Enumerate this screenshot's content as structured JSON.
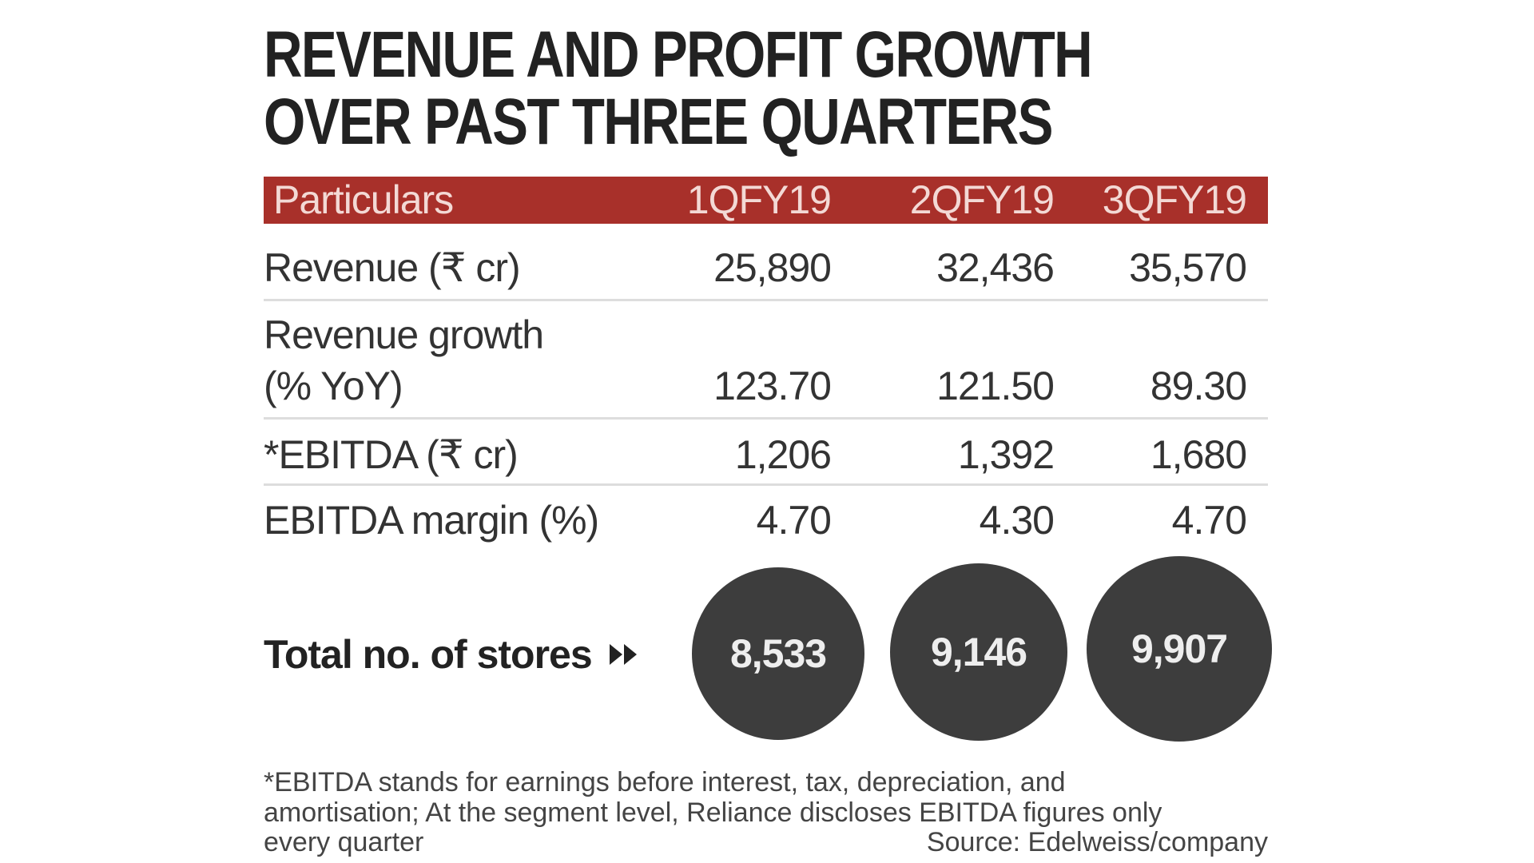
{
  "title": {
    "line1": "REVENUE AND PROFIT GROWTH",
    "line2": "OVER PAST THREE QUARTERS"
  },
  "colors": {
    "header_bg": "#a8302a",
    "circle_bg": "#3d3d3d"
  },
  "table": {
    "headers": [
      "Particulars",
      "1QFY19",
      "2QFY19",
      "3QFY19"
    ],
    "rows": [
      {
        "label": "Revenue (₹ cr)",
        "values": [
          "25,890",
          "32,436",
          "35,570"
        ]
      },
      {
        "label_line1": "Revenue growth",
        "label_line2": "(% YoY)",
        "values": [
          "123.70",
          "121.50",
          "89.30"
        ]
      },
      {
        "label": "*EBITDA (₹ cr)",
        "values": [
          "1,206",
          "1,392",
          "1,680"
        ]
      },
      {
        "label": "EBITDA margin (%)",
        "values": [
          "4.70",
          "4.30",
          "4.70"
        ]
      }
    ]
  },
  "stores": {
    "label": "Total no. of stores",
    "icon": "double-arrow-right-icon",
    "values": [
      "8,533",
      "9,146",
      "9,907"
    ]
  },
  "footnote": {
    "line1": "*EBITDA stands for earnings before interest, tax, depreciation, and",
    "line2": "amortisation; At the segment level, Reliance discloses EBITDA figures only",
    "line3": "every quarter",
    "source": "Source: Edelweiss/company"
  }
}
